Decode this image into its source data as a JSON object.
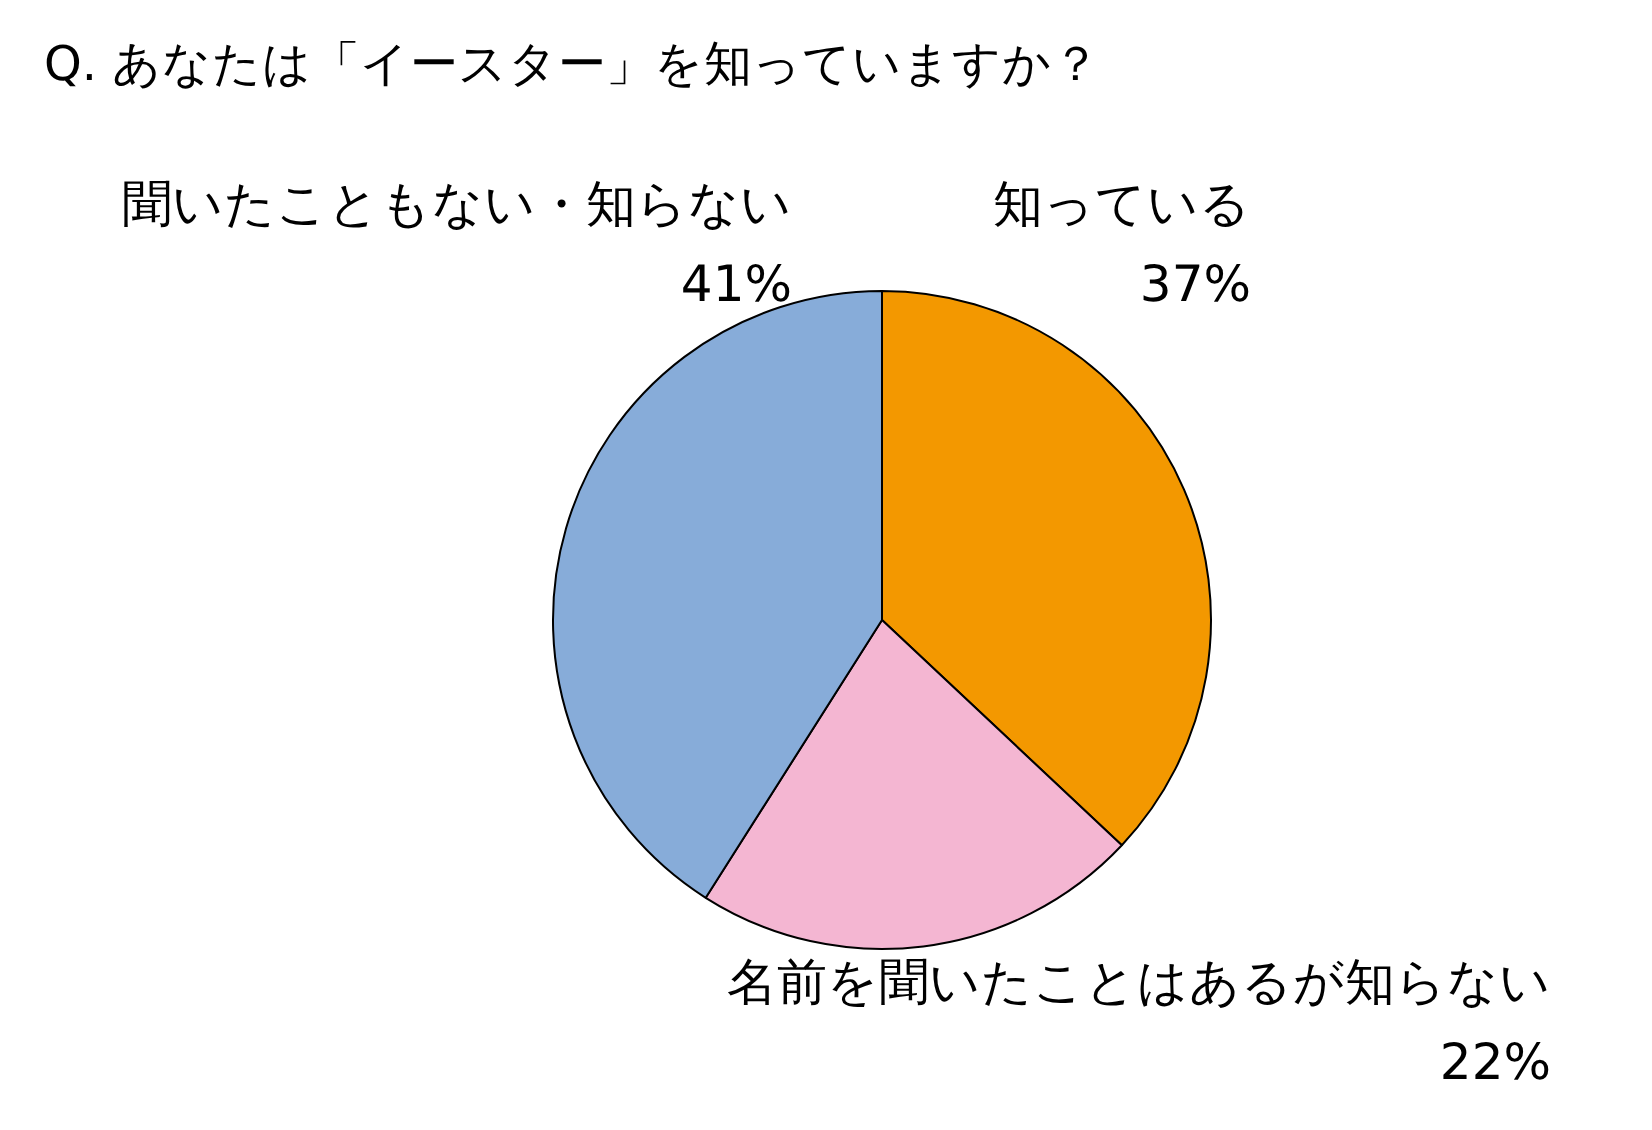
{
  "chart_data": {
    "type": "pie",
    "title": "Q. あなたは「イースター」を知っていますか？",
    "categories": [
      "知っている",
      "名前を聞いたことはあるが知らない",
      "聞いたこともない・知らない"
    ],
    "values": [
      37,
      22,
      41
    ],
    "colors": [
      "#f39800",
      "#f4b6d2",
      "#87acd9"
    ],
    "value_labels": [
      "37%",
      "22%",
      "41%"
    ],
    "legend": false
  }
}
